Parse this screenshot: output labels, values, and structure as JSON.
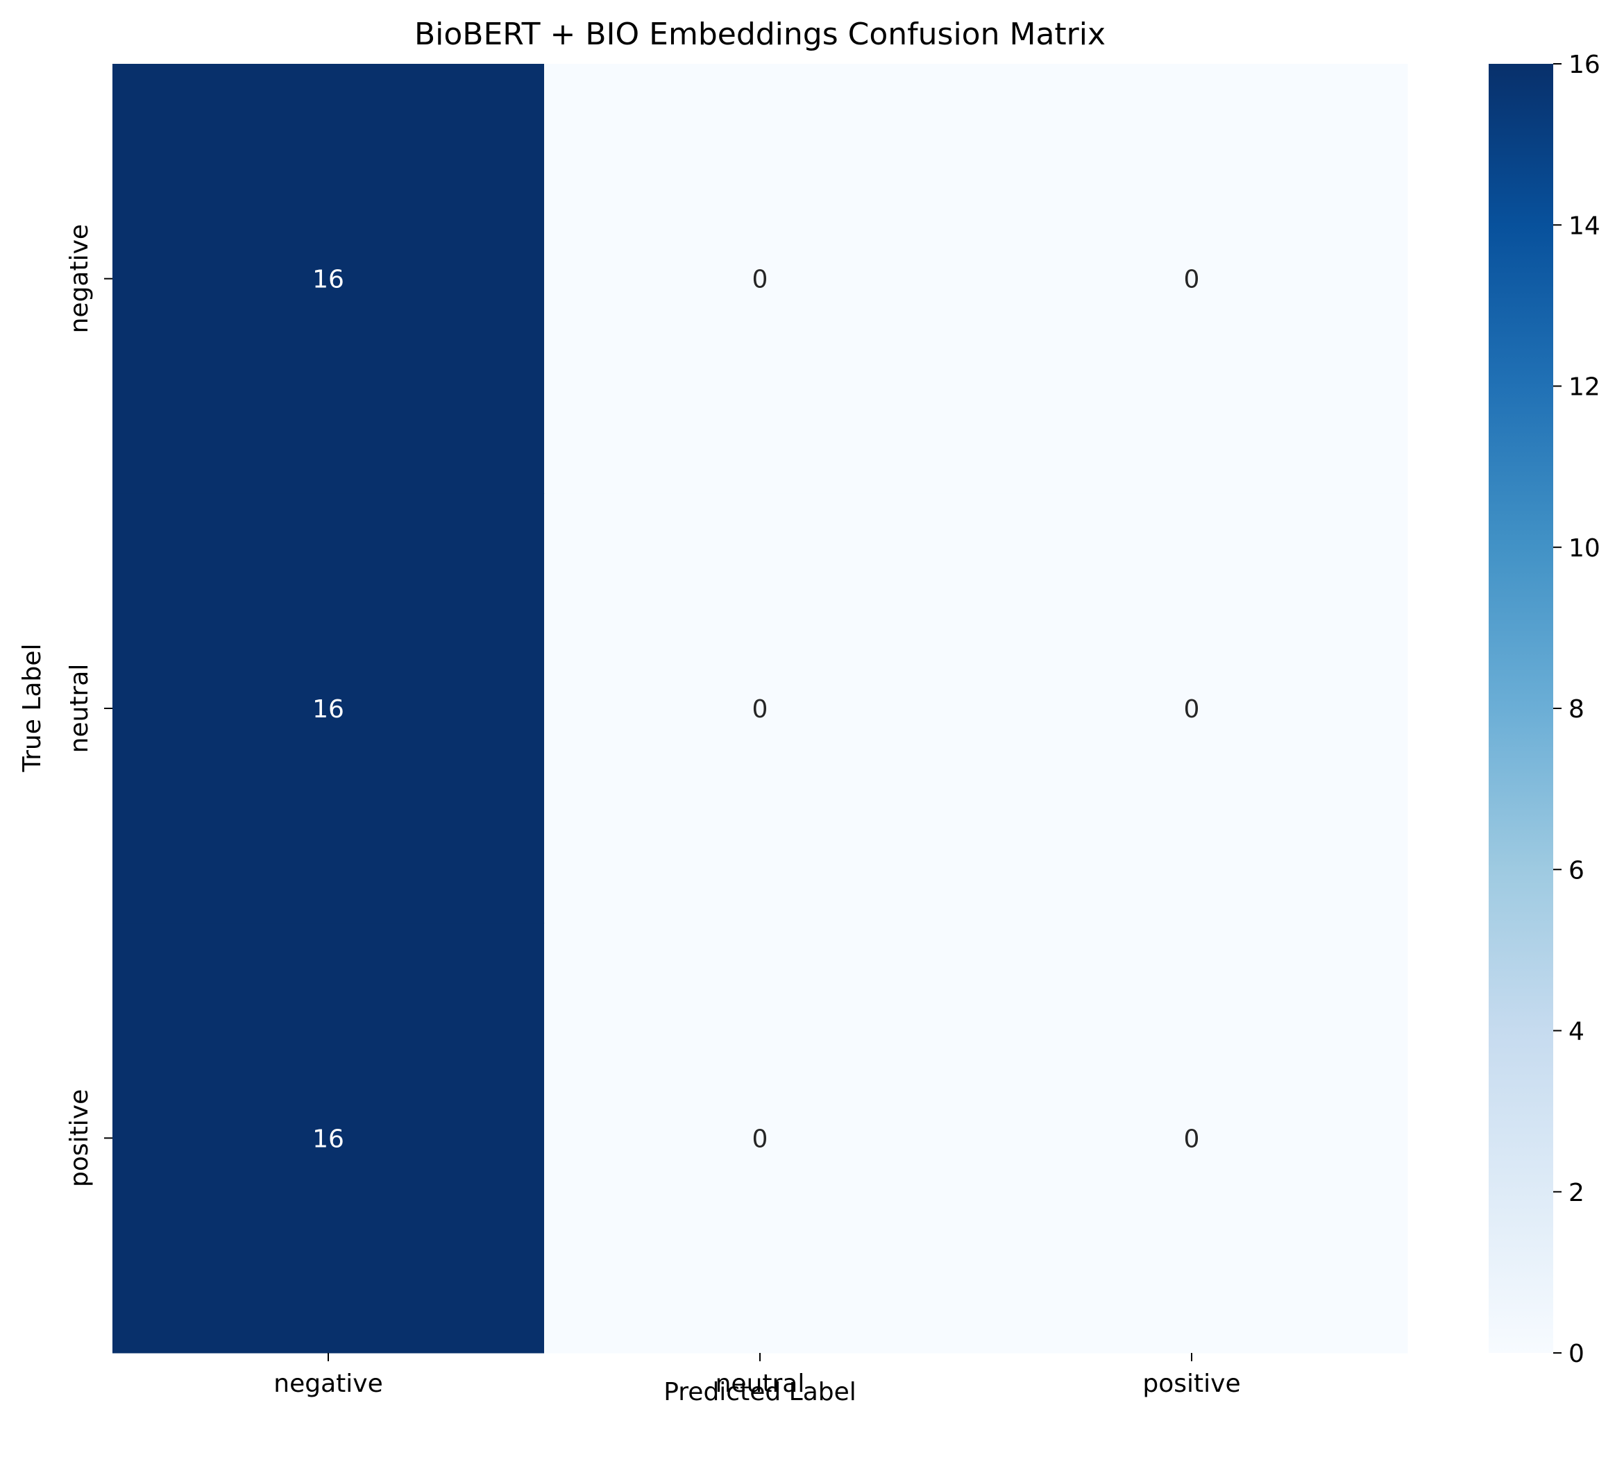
{
  "chart_data": {
    "type": "heatmap",
    "title": "BioBERT + BIO Embeddings Confusion Matrix",
    "xlabel": "Predicted Label",
    "ylabel": "True Label",
    "x_categories": [
      "negative",
      "neutral",
      "positive"
    ],
    "y_categories": [
      "negative",
      "neutral",
      "positive"
    ],
    "values": [
      [
        16,
        0,
        0
      ],
      [
        16,
        0,
        0
      ],
      [
        16,
        0,
        0
      ]
    ],
    "colormap": "Blues",
    "colors": {
      "low": "#f7fbff",
      "high": "#08306b"
    },
    "colorbar": {
      "range": [
        0,
        16
      ],
      "ticks": [
        0,
        2,
        4,
        6,
        8,
        10,
        12,
        14,
        16
      ]
    },
    "annotated": true,
    "grid": false
  }
}
